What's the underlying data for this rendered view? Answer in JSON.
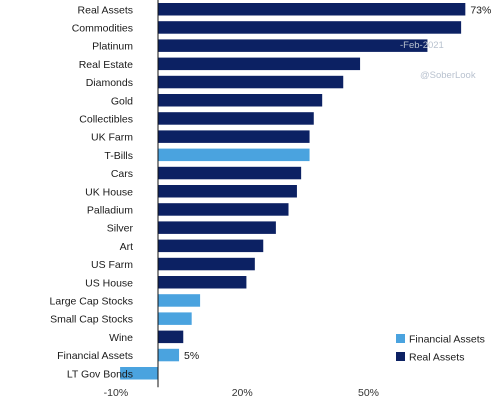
{
  "chart_data": {
    "type": "bar",
    "orientation": "horizontal",
    "title": "",
    "xlabel": "",
    "ylabel": "",
    "unit": "%",
    "xlim": [
      -10,
      75
    ],
    "x_ticks": [
      -10,
      20,
      50
    ],
    "x_tick_labels": [
      "-10%",
      "20%",
      "50%"
    ],
    "grid": false,
    "legend_position": "bottom-right",
    "colors": {
      "Financial Assets": "#4aa3df",
      "Real Assets": "#0c2163"
    },
    "legend": [
      {
        "name": "Financial Assets",
        "color": "#4aa3df"
      },
      {
        "name": "Real Assets",
        "color": "#0c2163"
      }
    ],
    "categories": [
      "Real Assets",
      "Commodities",
      "Platinum",
      "Real Estate",
      "Diamonds",
      "Gold",
      "Collectibles",
      "UK Farm",
      "T-Bills",
      "Cars",
      "UK House",
      "Palladium",
      "Silver",
      "Art",
      "US Farm",
      "US House",
      "Large Cap Stocks",
      "Small Cap Stocks",
      "Wine",
      "Financial Assets",
      "LT Gov Bonds"
    ],
    "values": [
      73,
      72,
      64,
      48,
      44,
      39,
      37,
      36,
      36,
      34,
      33,
      31,
      28,
      25,
      23,
      21,
      10,
      8,
      6,
      5,
      -9
    ],
    "groups": [
      "Real Assets",
      "Real Assets",
      "Real Assets",
      "Real Assets",
      "Real Assets",
      "Real Assets",
      "Real Assets",
      "Real Assets",
      "Financial Assets",
      "Real Assets",
      "Real Assets",
      "Real Assets",
      "Real Assets",
      "Real Assets",
      "Real Assets",
      "Real Assets",
      "Financial Assets",
      "Financial Assets",
      "Real Assets",
      "Financial Assets",
      "Financial Assets"
    ],
    "data_labels": [
      {
        "category": "Real Assets",
        "text": "73%"
      },
      {
        "category": "Financial Assets",
        "text": "5%"
      }
    ],
    "watermark": [
      "-Feb-2021",
      "@SoberLook"
    ]
  }
}
